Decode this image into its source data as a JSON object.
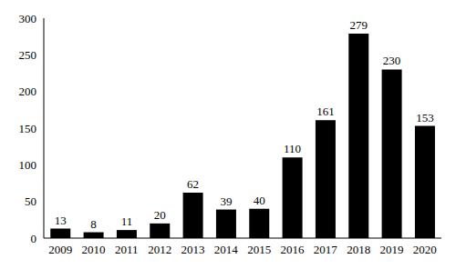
{
  "chart_data": {
    "type": "bar",
    "categories": [
      "2009",
      "2010",
      "2011",
      "2012",
      "2013",
      "2014",
      "2015",
      "2016",
      "2017",
      "2018",
      "2019",
      "2020"
    ],
    "values": [
      13,
      8,
      11,
      20,
      62,
      39,
      40,
      110,
      161,
      279,
      230,
      153
    ],
    "color": "#000000",
    "ylim": [
      0,
      300
    ],
    "yticks": [
      0,
      50,
      100,
      150,
      200,
      250,
      300
    ],
    "grid": false,
    "data_labels": true
  }
}
